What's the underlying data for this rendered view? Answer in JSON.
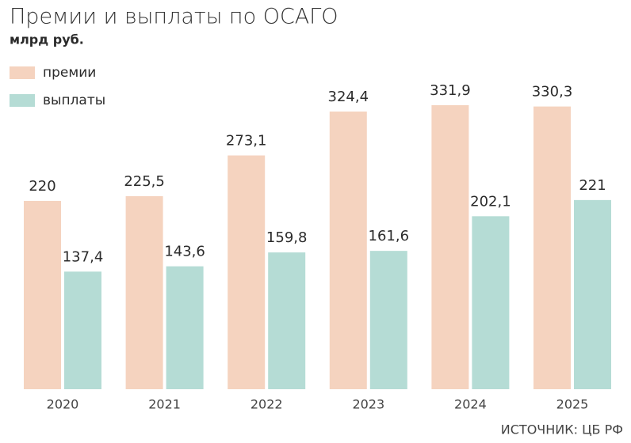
{
  "chart_data": {
    "type": "bar",
    "title": "Премии и выплаты по ОСАГО",
    "subtitle": "млрд руб.",
    "source": "ИСТОЧНИК: ЦБ РФ",
    "categories": [
      "2020",
      "2021",
      "2022",
      "2023",
      "2024",
      "2025"
    ],
    "series": [
      {
        "name": "премии",
        "color": "#f5d3bf",
        "values": [
          220,
          225.5,
          273.1,
          324.4,
          331.9,
          330.3
        ],
        "value_labels": [
          "220",
          "225,5",
          "273,1",
          "324,4",
          "331,9",
          "330,3"
        ]
      },
      {
        "name": "выплаты",
        "color": "#b5dcd5",
        "values": [
          137.4,
          143.6,
          159.8,
          161.6,
          202.1,
          221
        ],
        "value_labels": [
          "137,4",
          "143,6",
          "159,8",
          "161,6",
          "202,1",
          "221"
        ]
      }
    ]
  }
}
